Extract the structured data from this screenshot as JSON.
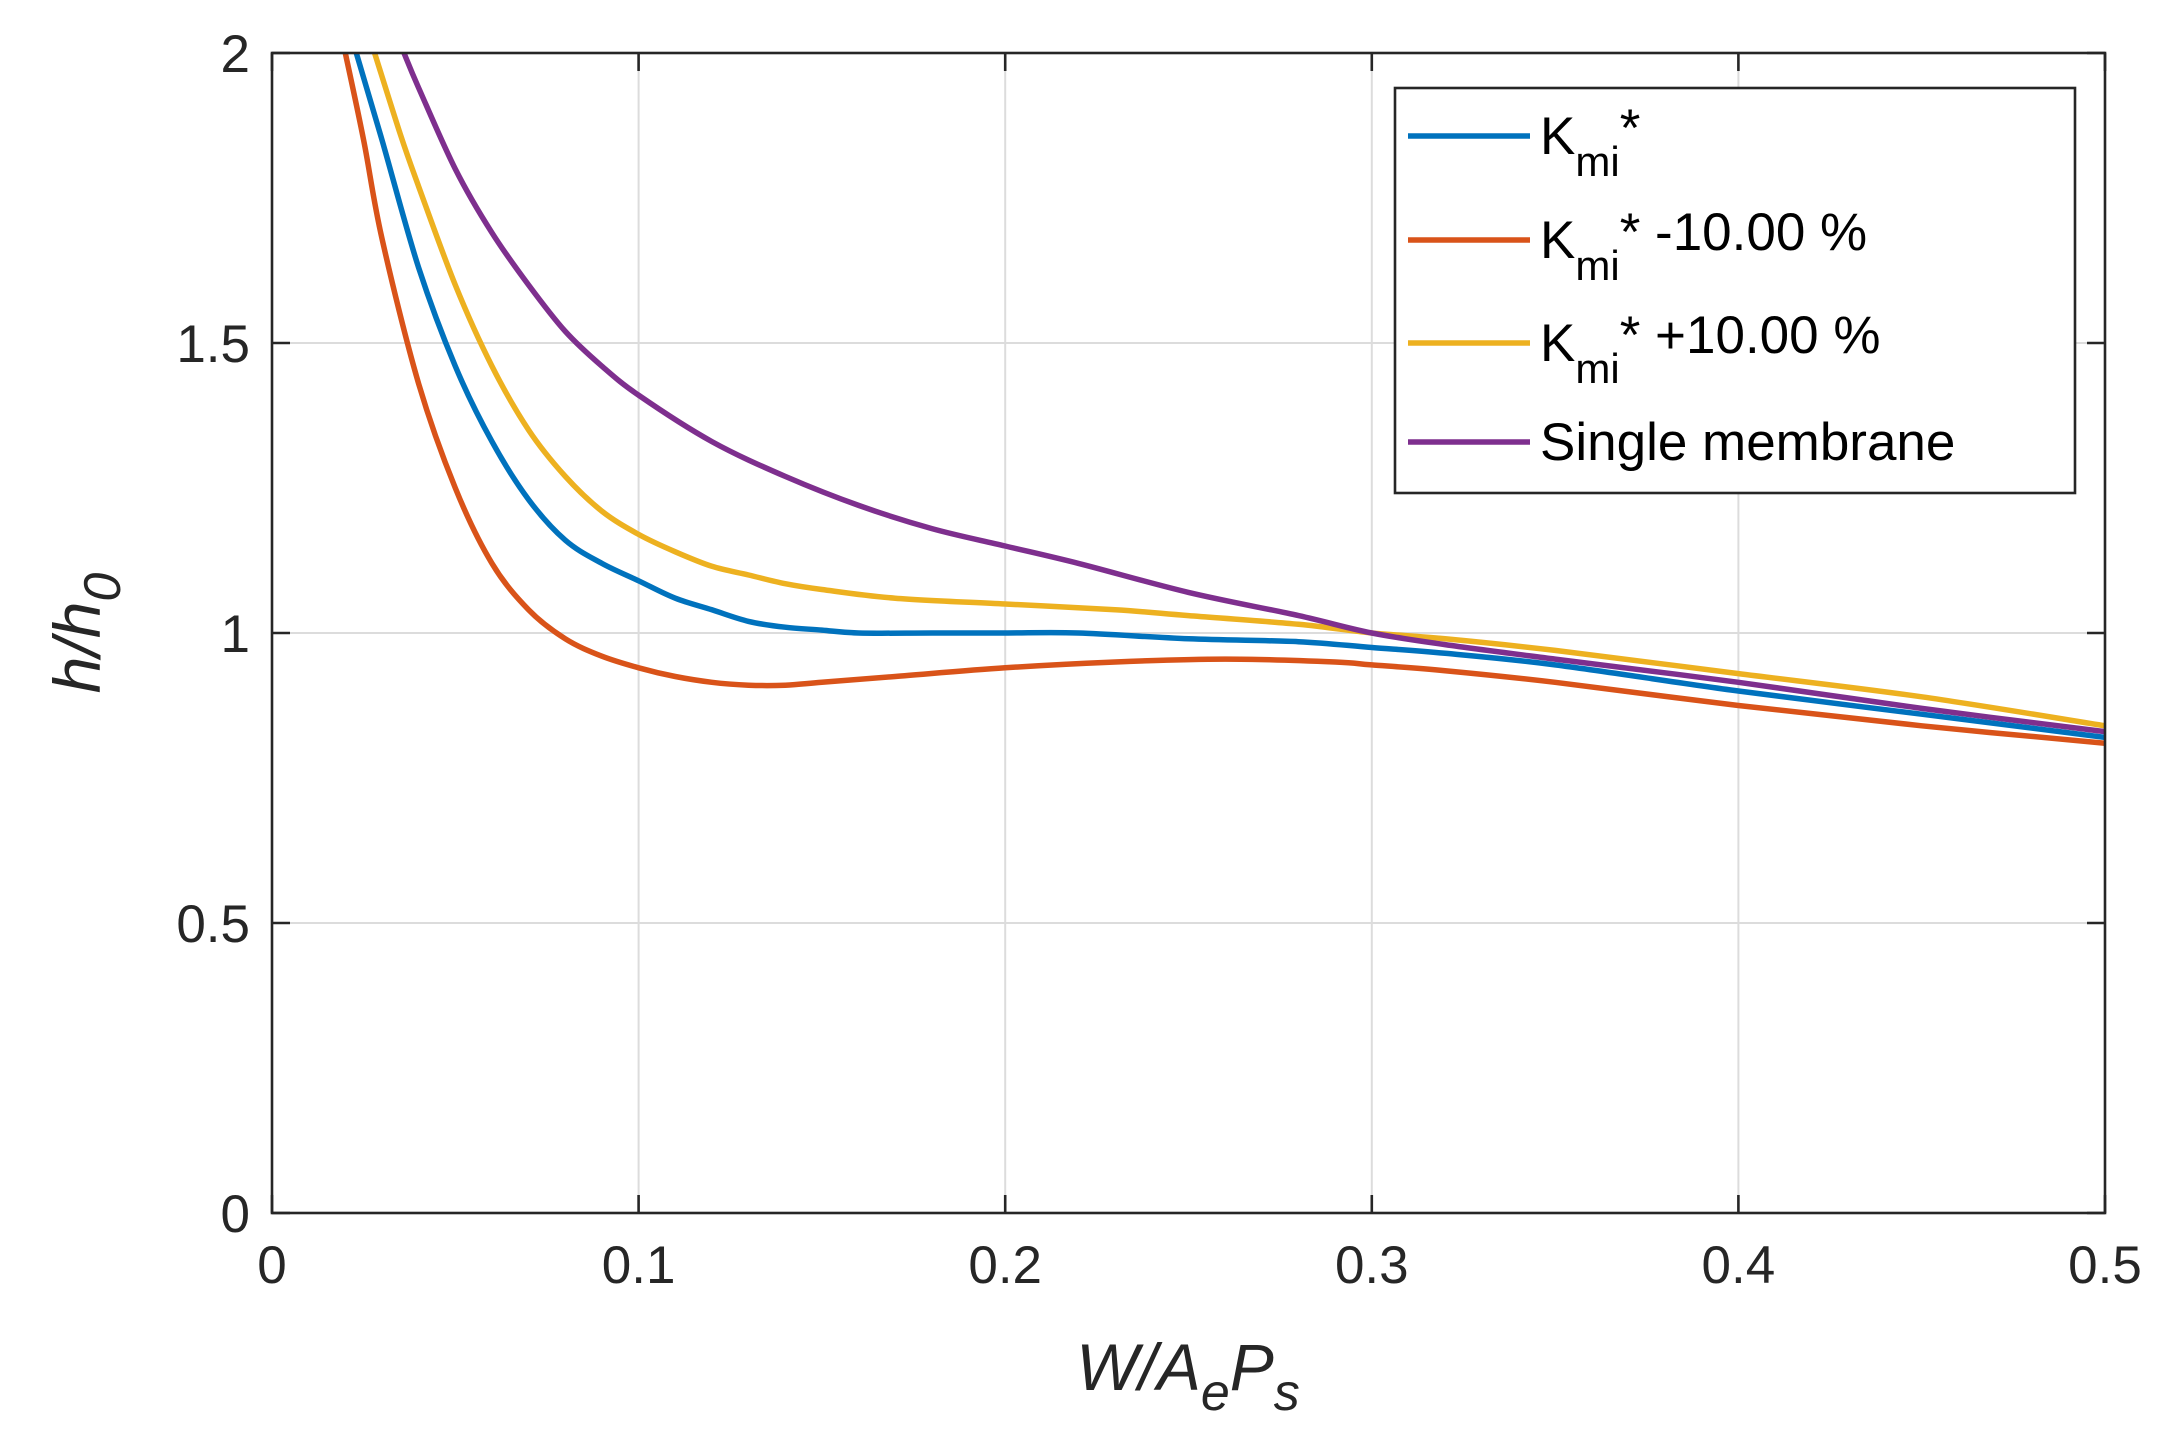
{
  "chart_data": {
    "type": "line",
    "xlabel": {
      "main": "W/A",
      "sub1": "e",
      "mid": "P",
      "sub2": "s"
    },
    "ylabel": {
      "main": "h/h",
      "sub": "0"
    },
    "xlim": [
      0,
      0.5
    ],
    "ylim": [
      0,
      2
    ],
    "grid": true,
    "legend_position": "top-right",
    "xticks": [
      0,
      0.1,
      0.2,
      0.3,
      0.4,
      0.5
    ],
    "xtick_labels": [
      "0",
      "0.1",
      "0.2",
      "0.3",
      "0.4",
      "0.5"
    ],
    "yticks": [
      0,
      0.5,
      1,
      1.5,
      2
    ],
    "ytick_labels": [
      "0",
      "0.5",
      "1",
      "1.5",
      "2"
    ],
    "series": [
      {
        "name": "Kmi*",
        "legend": {
          "base": "K",
          "sub": "mi",
          "suffix": "*"
        },
        "color": "#0072BD",
        "x": [
          0.023,
          0.03,
          0.04,
          0.05,
          0.06,
          0.07,
          0.08,
          0.09,
          0.1,
          0.11,
          0.12,
          0.13,
          0.14,
          0.15,
          0.16,
          0.18,
          0.2,
          0.22,
          0.25,
          0.28,
          0.3,
          0.32,
          0.35,
          0.4,
          0.45,
          0.5
        ],
        "y": [
          2.0,
          1.85,
          1.63,
          1.46,
          1.33,
          1.23,
          1.16,
          1.12,
          1.09,
          1.06,
          1.04,
          1.02,
          1.01,
          1.005,
          1.0,
          1.0,
          1.0,
          1.0,
          0.99,
          0.985,
          0.975,
          0.965,
          0.945,
          0.9,
          0.86,
          0.82
        ]
      },
      {
        "name": "Kmi* -10.00 %",
        "legend": {
          "base": "K",
          "sub": "mi",
          "suffix": "* -10.00 %"
        },
        "color": "#D95319",
        "x": [
          0.02,
          0.025,
          0.03,
          0.04,
          0.05,
          0.06,
          0.07,
          0.08,
          0.09,
          0.1,
          0.11,
          0.12,
          0.13,
          0.14,
          0.15,
          0.17,
          0.2,
          0.23,
          0.26,
          0.29,
          0.3,
          0.32,
          0.35,
          0.4,
          0.45,
          0.5
        ],
        "y": [
          2.0,
          1.85,
          1.68,
          1.43,
          1.25,
          1.12,
          1.04,
          0.99,
          0.96,
          0.94,
          0.925,
          0.915,
          0.91,
          0.91,
          0.915,
          0.925,
          0.94,
          0.95,
          0.955,
          0.95,
          0.945,
          0.935,
          0.915,
          0.875,
          0.84,
          0.81
        ]
      },
      {
        "name": "Kmi* +10.00 %",
        "legend": {
          "base": "K",
          "sub": "mi",
          "suffix": "* +10.00 %"
        },
        "color": "#EDB120",
        "x": [
          0.028,
          0.035,
          0.04,
          0.05,
          0.06,
          0.07,
          0.08,
          0.09,
          0.1,
          0.11,
          0.12,
          0.13,
          0.14,
          0.15,
          0.17,
          0.2,
          0.23,
          0.25,
          0.28,
          0.3,
          0.32,
          0.35,
          0.4,
          0.45,
          0.5
        ],
        "y": [
          2.0,
          1.86,
          1.77,
          1.6,
          1.46,
          1.35,
          1.27,
          1.21,
          1.17,
          1.14,
          1.115,
          1.1,
          1.085,
          1.075,
          1.06,
          1.05,
          1.04,
          1.03,
          1.015,
          1.0,
          0.99,
          0.97,
          0.93,
          0.89,
          0.84
        ]
      },
      {
        "name": "Single membrane",
        "legend": {
          "base": "Single membrane",
          "sub": "",
          "suffix": ""
        },
        "color": "#7E2F8E",
        "x": [
          0.036,
          0.04,
          0.05,
          0.06,
          0.07,
          0.08,
          0.09,
          0.1,
          0.12,
          0.14,
          0.16,
          0.18,
          0.2,
          0.22,
          0.25,
          0.28,
          0.3,
          0.32,
          0.35,
          0.4,
          0.45,
          0.5
        ],
        "y": [
          2.0,
          1.94,
          1.8,
          1.69,
          1.6,
          1.52,
          1.46,
          1.41,
          1.33,
          1.27,
          1.22,
          1.18,
          1.15,
          1.12,
          1.07,
          1.03,
          1.0,
          0.98,
          0.955,
          0.915,
          0.87,
          0.83
        ]
      }
    ]
  }
}
